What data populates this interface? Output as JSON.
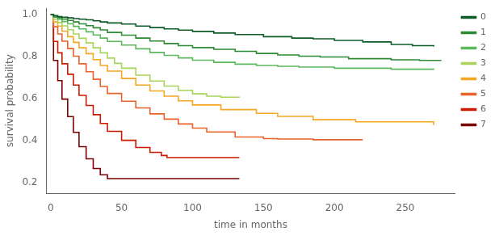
{
  "chart_data": {
    "type": "line",
    "line_style": "step",
    "xlabel": "time in months",
    "ylabel": "survival probability",
    "series": [
      {
        "name": "0",
        "color": "#0d5c27",
        "x": [
          0,
          2,
          5,
          8,
          12,
          16,
          20,
          25,
          30,
          35,
          40,
          50,
          60,
          70,
          80,
          90,
          100,
          115,
          130,
          150,
          170,
          185,
          200,
          220,
          240,
          255,
          270
        ],
        "values": [
          1.0,
          0.995,
          0.99,
          0.987,
          0.984,
          0.981,
          0.978,
          0.975,
          0.97,
          0.965,
          0.96,
          0.955,
          0.945,
          0.938,
          0.932,
          0.926,
          0.92,
          0.912,
          0.905,
          0.895,
          0.888,
          0.885,
          0.877,
          0.87,
          0.858,
          0.852,
          0.848
        ]
      },
      {
        "name": "1",
        "color": "#2d8b35",
        "x": [
          0,
          2,
          5,
          8,
          12,
          16,
          20,
          25,
          30,
          35,
          40,
          50,
          60,
          70,
          80,
          90,
          100,
          115,
          130,
          145,
          160,
          175,
          190,
          210,
          240,
          260,
          275
        ],
        "values": [
          1.0,
          0.99,
          0.985,
          0.978,
          0.972,
          0.965,
          0.956,
          0.947,
          0.937,
          0.927,
          0.915,
          0.902,
          0.888,
          0.874,
          0.862,
          0.852,
          0.843,
          0.835,
          0.825,
          0.815,
          0.808,
          0.802,
          0.798,
          0.79,
          0.785,
          0.782,
          0.78
        ]
      },
      {
        "name": "2",
        "color": "#5cb85c",
        "x": [
          0,
          2,
          5,
          8,
          12,
          16,
          20,
          25,
          30,
          35,
          40,
          50,
          60,
          70,
          80,
          90,
          100,
          115,
          130,
          145,
          160,
          175,
          200,
          240,
          270
        ],
        "values": [
          1.0,
          0.988,
          0.978,
          0.967,
          0.956,
          0.944,
          0.932,
          0.918,
          0.903,
          0.888,
          0.872,
          0.855,
          0.837,
          0.82,
          0.806,
          0.794,
          0.783,
          0.773,
          0.764,
          0.758,
          0.754,
          0.75,
          0.745,
          0.74,
          0.738
        ]
      },
      {
        "name": "3",
        "color": "#a8d45a",
        "x": [
          0,
          2,
          5,
          8,
          12,
          16,
          20,
          25,
          30,
          35,
          40,
          45,
          50,
          60,
          70,
          80,
          90,
          100,
          110,
          120,
          133
        ],
        "values": [
          1.0,
          0.978,
          0.962,
          0.946,
          0.928,
          0.908,
          0.887,
          0.865,
          0.842,
          0.818,
          0.793,
          0.768,
          0.745,
          0.712,
          0.684,
          0.66,
          0.64,
          0.623,
          0.612,
          0.607,
          0.605
        ]
      },
      {
        "name": "4",
        "color": "#f5a623",
        "x": [
          0,
          2,
          5,
          8,
          12,
          16,
          20,
          25,
          30,
          35,
          40,
          50,
          60,
          70,
          80,
          90,
          100,
          120,
          145,
          160,
          185,
          215,
          270
        ],
        "values": [
          1.0,
          0.965,
          0.945,
          0.921,
          0.895,
          0.868,
          0.842,
          0.814,
          0.786,
          0.758,
          0.731,
          0.696,
          0.665,
          0.637,
          0.612,
          0.59,
          0.57,
          0.548,
          0.53,
          0.516,
          0.5,
          0.49,
          0.475
        ]
      },
      {
        "name": "5",
        "color": "#e8622a",
        "x": [
          0,
          2,
          5,
          8,
          12,
          16,
          20,
          25,
          30,
          35,
          40,
          50,
          60,
          70,
          80,
          90,
          100,
          110,
          130,
          150,
          160,
          185,
          220
        ],
        "values": [
          1.0,
          0.942,
          0.908,
          0.873,
          0.838,
          0.802,
          0.766,
          0.728,
          0.692,
          0.658,
          0.625,
          0.588,
          0.556,
          0.528,
          0.503,
          0.48,
          0.46,
          0.442,
          0.418,
          0.41,
          0.408,
          0.405,
          0.405
        ]
      },
      {
        "name": "6",
        "color": "#cc1a00",
        "x": [
          0,
          2,
          5,
          8,
          12,
          16,
          20,
          25,
          30,
          35,
          40,
          50,
          60,
          70,
          78,
          82,
          133
        ],
        "values": [
          1.0,
          0.872,
          0.818,
          0.766,
          0.716,
          0.665,
          0.616,
          0.568,
          0.524,
          0.482,
          0.445,
          0.402,
          0.368,
          0.345,
          0.33,
          0.32,
          0.32
        ]
      },
      {
        "name": "7",
        "color": "#7b0000",
        "x": [
          0,
          2,
          5,
          8,
          12,
          16,
          20,
          25,
          30,
          35,
          40,
          133
        ],
        "values": [
          1.0,
          0.782,
          0.686,
          0.598,
          0.515,
          0.44,
          0.372,
          0.314,
          0.268,
          0.238,
          0.22,
          0.22
        ]
      }
    ],
    "xlim": [
      -3,
      285
    ],
    "ylim": [
      0.15,
      1.03
    ],
    "xticks": [
      0,
      50,
      100,
      150,
      200,
      250
    ],
    "yticks": [
      0.2,
      0.4,
      0.6,
      0.8,
      {
        "value": 1.0,
        "label": "1.0"
      }
    ],
    "grid": false,
    "legend": "upper right"
  }
}
